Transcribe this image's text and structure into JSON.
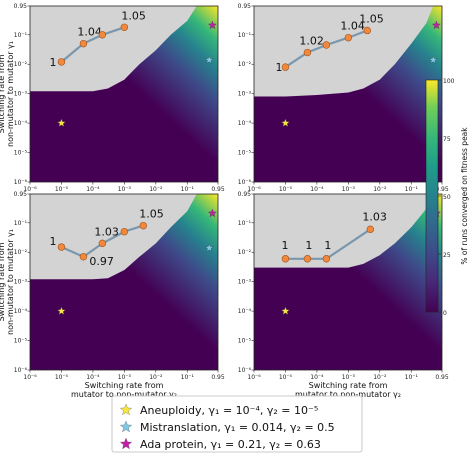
{
  "chart_data": {
    "type": "heatmap",
    "panels": [
      {
        "name": "top-left",
        "points": [
          {
            "x": 1e-05,
            "y": 0.012,
            "label": "1"
          },
          {
            "x": 5e-05,
            "y": 0.05,
            "label": "1.04"
          },
          {
            "x": 0.0002,
            "y": 0.1,
            "label": ""
          },
          {
            "x": 0.001,
            "y": 0.18,
            "label": "1.05"
          }
        ],
        "boundary": [
          [
            1e-06,
            0.0012
          ],
          [
            1e-05,
            0.0012
          ],
          [
            0.0001,
            0.0012
          ],
          [
            0.0003,
            0.0015
          ],
          [
            0.001,
            0.003
          ],
          [
            0.003,
            0.01
          ],
          [
            0.01,
            0.03
          ],
          [
            0.03,
            0.1
          ],
          [
            0.1,
            0.3
          ],
          [
            0.2,
            0.95
          ]
        ]
      },
      {
        "name": "top-right",
        "points": [
          {
            "x": 1e-05,
            "y": 0.008,
            "label": "1"
          },
          {
            "x": 5e-05,
            "y": 0.025,
            "label": "1.02"
          },
          {
            "x": 0.0002,
            "y": 0.045,
            "label": ""
          },
          {
            "x": 0.001,
            "y": 0.08,
            "label": "1.04"
          },
          {
            "x": 0.004,
            "y": 0.14,
            "label": "1.05"
          }
        ],
        "boundary": [
          [
            1e-06,
            0.0008
          ],
          [
            1e-05,
            0.0008
          ],
          [
            0.0001,
            0.0009
          ],
          [
            0.001,
            0.0011
          ],
          [
            0.003,
            0.0015
          ],
          [
            0.01,
            0.003
          ],
          [
            0.03,
            0.01
          ],
          [
            0.1,
            0.05
          ],
          [
            0.3,
            0.25
          ],
          [
            0.5,
            0.95
          ]
        ]
      },
      {
        "name": "bottom-left",
        "points": [
          {
            "x": 1e-05,
            "y": 0.015,
            "label": "1"
          },
          {
            "x": 5e-05,
            "y": 0.007,
            "label": "0.97"
          },
          {
            "x": 0.0002,
            "y": 0.02,
            "label": "1.03"
          },
          {
            "x": 0.001,
            "y": 0.05,
            "label": ""
          },
          {
            "x": 0.004,
            "y": 0.08,
            "label": "1.05"
          }
        ],
        "boundary": [
          [
            1e-06,
            0.0012
          ],
          [
            1e-05,
            0.0012
          ],
          [
            0.0001,
            0.0012
          ],
          [
            0.0003,
            0.0013
          ],
          [
            0.001,
            0.0025
          ],
          [
            0.003,
            0.007
          ],
          [
            0.01,
            0.02
          ],
          [
            0.03,
            0.07
          ],
          [
            0.1,
            0.25
          ],
          [
            0.2,
            0.95
          ]
        ]
      },
      {
        "name": "bottom-right",
        "points": [
          {
            "x": 1e-05,
            "y": 0.006,
            "label": "1"
          },
          {
            "x": 5e-05,
            "y": 0.006,
            "label": "1"
          },
          {
            "x": 0.0002,
            "y": 0.006,
            "label": "1"
          },
          {
            "x": 0.005,
            "y": 0.06,
            "label": "1.03"
          }
        ],
        "boundary": [
          [
            1e-06,
            0.003
          ],
          [
            1e-05,
            0.003
          ],
          [
            0.0001,
            0.003
          ],
          [
            0.001,
            0.003
          ],
          [
            0.003,
            0.004
          ],
          [
            0.01,
            0.008
          ],
          [
            0.03,
            0.02
          ],
          [
            0.1,
            0.07
          ],
          [
            0.3,
            0.3
          ],
          [
            0.5,
            0.95
          ]
        ]
      }
    ],
    "markers": [
      {
        "name": "Aneuploidy",
        "x": 1e-05,
        "y": 0.0001,
        "color": "#f5e642"
      },
      {
        "name": "Mistranslation",
        "x": 0.5,
        "y": 0.014,
        "color": "#7ec8e3"
      },
      {
        "name": "Ada protein",
        "x": 0.63,
        "y": 0.21,
        "color": "#c21fa8"
      }
    ],
    "x_ticks": [
      "10⁻⁶",
      "10⁻⁵",
      "10⁻⁴",
      "10⁻³",
      "10⁻²",
      "10⁻¹",
      "0.95"
    ],
    "y_ticks": [
      "0.95",
      "10⁻¹",
      "10⁻²",
      "10⁻³",
      "10⁻⁴",
      "10⁻⁵",
      "10⁻⁶"
    ],
    "xlabel": [
      "Switching rate from",
      "mutator to non-mutator γ₂"
    ],
    "ylabel": [
      "Switching rate from",
      "non-mutator to mutator γ₁"
    ],
    "colorbar": {
      "label": "% of runs converged on fitness peak",
      "ticks": [
        "0",
        "25",
        "50",
        "75",
        "100"
      ]
    },
    "legend": [
      {
        "text": "Aneuploidy, γ₁ = 10⁻⁴, γ₂ = 10⁻⁵",
        "color": "#f5e642"
      },
      {
        "text": "Mistranslation, γ₁ = 0.014, γ₂ = 0.5",
        "color": "#7ec8e3"
      },
      {
        "text": "Ada protein, γ₁ = 0.21, γ₂ = 0.63",
        "color": "#c21fa8"
      }
    ],
    "colors": {
      "empty": "#d3d3d3",
      "low": "#440154",
      "high": "#fde725",
      "line": "#7a97ad",
      "point": "#f0883e"
    }
  }
}
